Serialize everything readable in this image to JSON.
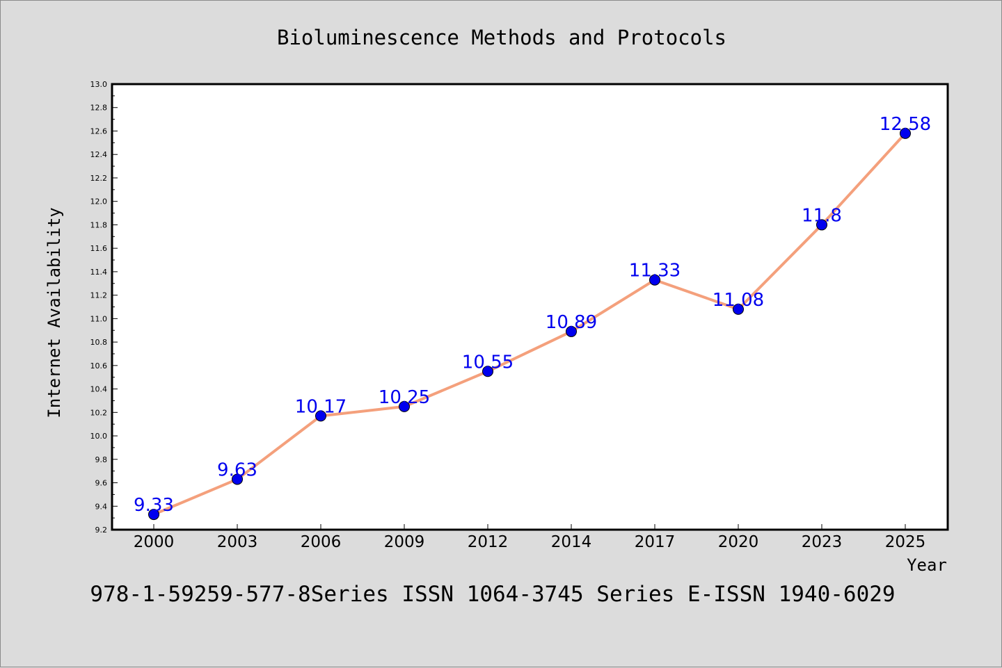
{
  "chart_data": {
    "type": "line",
    "title": "Bioluminescence Methods and Protocols",
    "xlabel": "Year",
    "ylabel": "Internet Availability",
    "categories": [
      "2000",
      "2003",
      "2006",
      "2009",
      "2012",
      "2014",
      "2017",
      "2020",
      "2023",
      "2025"
    ],
    "series": [
      {
        "values": [
          9.33,
          9.63,
          10.17,
          10.25,
          10.55,
          10.89,
          11.33,
          11.08,
          11.8,
          12.58
        ],
        "labels": [
          "9.33",
          "9.63",
          "10.17",
          "10.25",
          "10.55",
          "10.89",
          "11.33",
          "11.08",
          "11.8",
          "12.58"
        ],
        "line_color": "#f4a07c",
        "marker_color": "#0000ee",
        "label_color": "#0000ee"
      }
    ],
    "ylim": [
      9.2,
      13.0
    ],
    "yticks": [
      "9.2",
      "9.4",
      "9.6",
      "9.8",
      "10.0",
      "10.2",
      "10.4",
      "10.6",
      "10.8",
      "11.0",
      "11.2",
      "11.4",
      "11.6",
      "11.8",
      "12.0",
      "12.2",
      "12.4",
      "12.6",
      "12.8",
      "13.0"
    ],
    "grid": false,
    "legend": "none"
  },
  "footer": "978-1-59259-577-8Series ISSN 1064-3745 Series E-ISSN 1940-6029",
  "colors": {
    "background": "#dcdcdc",
    "plot_area": "#ffffff"
  }
}
